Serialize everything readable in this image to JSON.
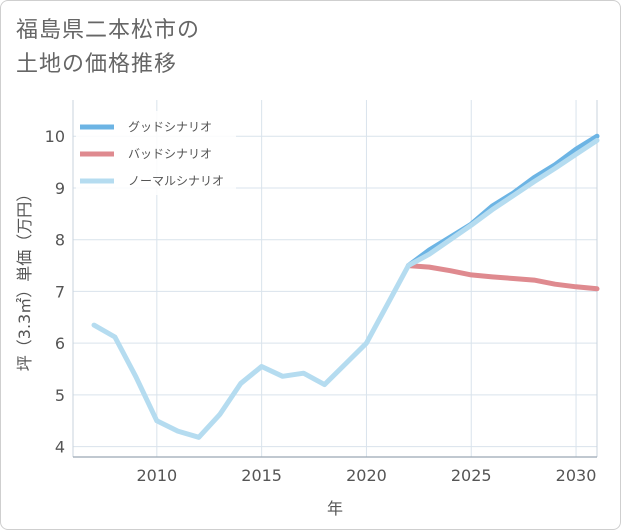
{
  "title_lines": [
    "福島県二本松市の",
    "土地の価格推移"
  ],
  "chart_data": {
    "type": "line",
    "xlabel": "年",
    "ylabel": "坪（3.3㎡）単価（万円）",
    "xlim": [
      2006,
      2031
    ],
    "ylim": [
      3.8,
      10.7
    ],
    "xticks": [
      2010,
      2015,
      2020,
      2025,
      2030
    ],
    "yticks": [
      4,
      5,
      6,
      7,
      8,
      9,
      10
    ],
    "grid": true,
    "legend_position": "top-left",
    "series": [
      {
        "name": "グッドシナリオ",
        "color": "#6cb4e4",
        "x": [
          2022,
          2023,
          2024,
          2025,
          2026,
          2027,
          2028,
          2029,
          2030,
          2031
        ],
        "y": [
          7.5,
          7.8,
          8.05,
          8.3,
          8.65,
          8.9,
          9.2,
          9.45,
          9.75,
          10.0
        ]
      },
      {
        "name": "バッドシナリオ",
        "color": "#df8a8f",
        "x": [
          2022,
          2023,
          2024,
          2025,
          2026,
          2027,
          2028,
          2029,
          2030,
          2031
        ],
        "y": [
          7.5,
          7.47,
          7.4,
          7.32,
          7.28,
          7.25,
          7.22,
          7.14,
          7.09,
          7.05
        ]
      },
      {
        "name": "ノーマルシナリオ",
        "color": "#b5dcf0",
        "x": [
          2007,
          2008,
          2009,
          2010,
          2011,
          2012,
          2013,
          2014,
          2015,
          2016,
          2017,
          2018,
          2019,
          2020,
          2021,
          2022,
          2023,
          2024,
          2025,
          2026,
          2027,
          2028,
          2029,
          2030,
          2031
        ],
        "y": [
          6.35,
          6.12,
          5.35,
          4.5,
          4.3,
          4.18,
          4.62,
          5.22,
          5.55,
          5.36,
          5.42,
          5.2,
          5.6,
          6.0,
          6.75,
          7.5,
          7.72,
          8.0,
          8.28,
          8.58,
          8.85,
          9.12,
          9.38,
          9.65,
          9.92
        ]
      }
    ]
  }
}
